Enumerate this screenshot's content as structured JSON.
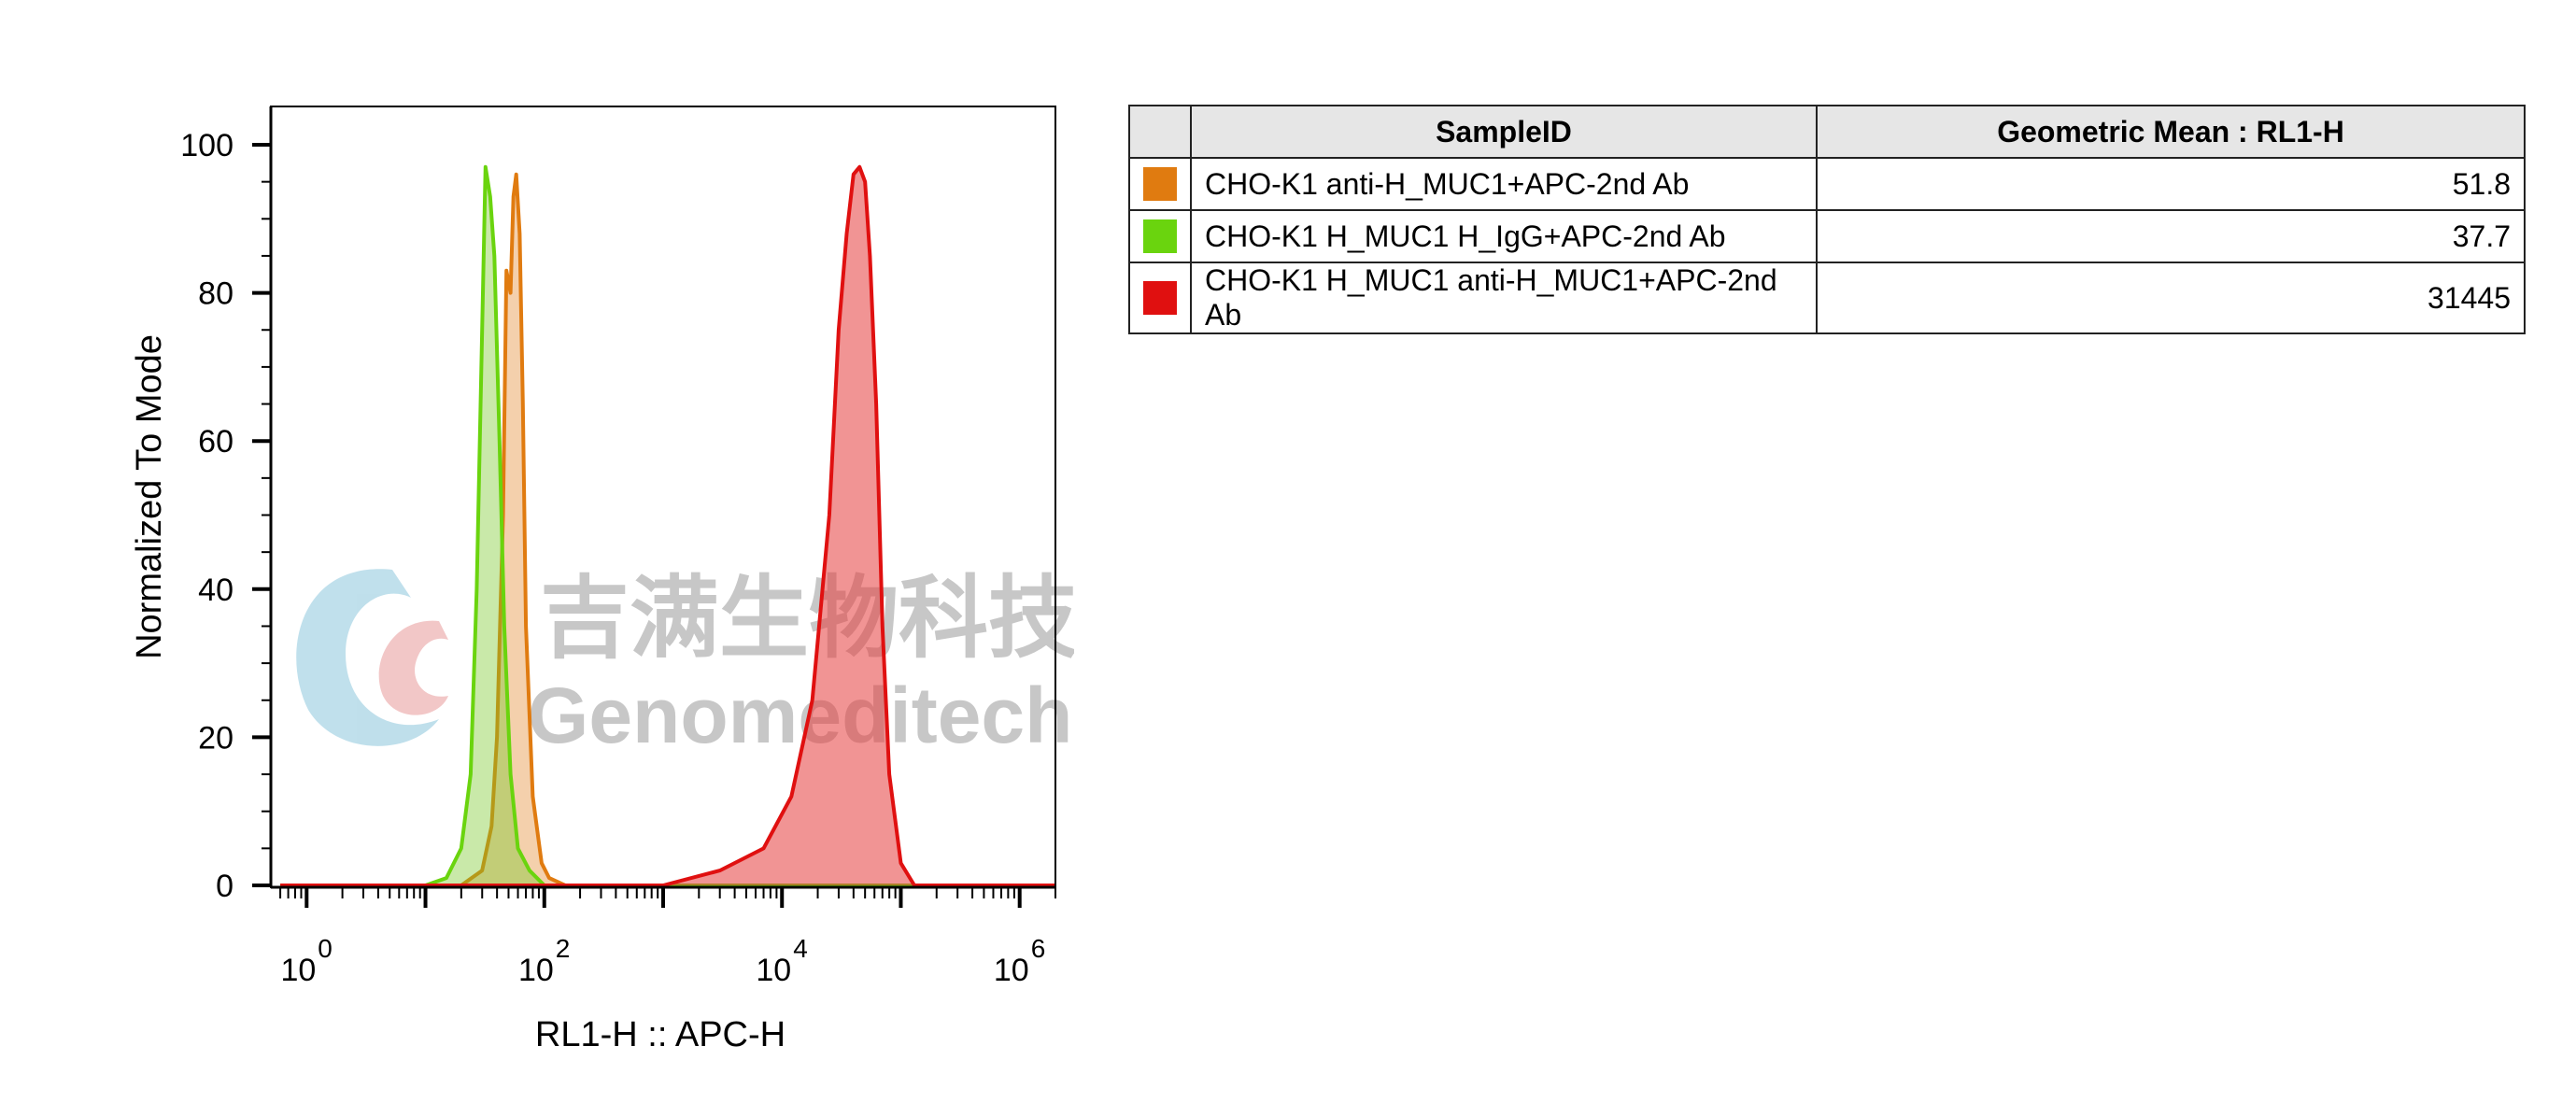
{
  "chart_data": {
    "type": "area",
    "xlabel": "RL1-H :: APC-H",
    "ylabel": "Normalized To Mode",
    "x_scale": "log",
    "xlim": [
      0.5,
      2000000
    ],
    "ylim": [
      0,
      105
    ],
    "x_ticks": [
      {
        "base": "10",
        "exp": "0"
      },
      {
        "base": "10",
        "exp": "2"
      },
      {
        "base": "10",
        "exp": "4"
      },
      {
        "base": "10",
        "exp": "6"
      }
    ],
    "y_ticks": [
      "0",
      "20",
      "40",
      "60",
      "80",
      "100"
    ],
    "grid": false,
    "series": [
      {
        "name": "CHO-K1 anti-H_MUC1+APC-2nd Ab",
        "color": "#e07b10",
        "fill": "rgba(230,150,70,0.45)",
        "x": [
          0.6,
          20,
          30,
          36,
          40,
          45,
          48,
          52,
          55,
          58,
          62,
          66,
          70,
          80,
          95,
          110,
          150,
          2000000
        ],
        "y": [
          0,
          0,
          2,
          8,
          20,
          50,
          83,
          80,
          93,
          96,
          88,
          65,
          35,
          12,
          3,
          1,
          0,
          0
        ]
      },
      {
        "name": "CHO-K1 H_MUC1 H_IgG+APC-2nd Ab",
        "color": "#6ad40e",
        "fill": "rgba(120,200,40,0.40)",
        "x": [
          0.6,
          10,
          15,
          20,
          24,
          27,
          30,
          32,
          35,
          38,
          42,
          46,
          52,
          60,
          75,
          100,
          2000000
        ],
        "y": [
          0,
          0,
          1,
          5,
          15,
          40,
          75,
          97,
          93,
          85,
          60,
          35,
          15,
          5,
          2,
          0,
          0
        ]
      },
      {
        "name": "CHO-K1 H_MUC1 anti-H_MUC1+APC-2nd Ab",
        "color": "#e01010",
        "fill": "rgba(230,60,60,0.55)",
        "x": [
          0.6,
          1000,
          3000,
          7000,
          12000,
          18000,
          25000,
          30000,
          35000,
          40000,
          45000,
          50000,
          55000,
          62000,
          70000,
          80000,
          100000,
          130000,
          2000000
        ],
        "y": [
          0,
          0,
          2,
          5,
          12,
          25,
          50,
          75,
          88,
          96,
          97,
          95,
          85,
          65,
          35,
          15,
          3,
          0,
          0
        ]
      }
    ]
  },
  "watermark": {
    "cn": "吉满生物科技",
    "en": "Genomeditech"
  },
  "table": {
    "headers": [
      "",
      "SampleID",
      "Geometric Mean : RL1-H"
    ],
    "rows": [
      {
        "color": "#e07b10",
        "sample": "CHO-K1 anti-H_MUC1+APC-2nd Ab",
        "value": "51.8"
      },
      {
        "color": "#6ad40e",
        "sample": "CHO-K1 H_MUC1 H_IgG+APC-2nd Ab",
        "value": "37.7"
      },
      {
        "color": "#e01010",
        "sample": "CHO-K1 H_MUC1 anti-H_MUC1+APC-2nd Ab",
        "value": "31445"
      }
    ]
  }
}
